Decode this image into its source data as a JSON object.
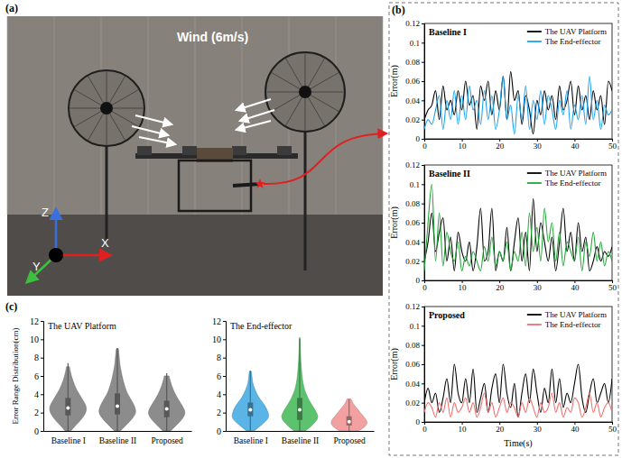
{
  "panel_labels": [
    "(a)",
    "(b)",
    "(c)"
  ],
  "photo": {
    "annotation": "Wind (6m/s)",
    "axes": {
      "x": "X",
      "y": "Y",
      "z": "Z"
    }
  },
  "chart_data": [
    {
      "type": "line",
      "title": "Baseline I",
      "ylabel": "Error(m)",
      "xlim": [
        0,
        50
      ],
      "xticks": [
        0,
        10,
        20,
        30,
        40,
        50
      ],
      "ylim": [
        0,
        0.12
      ],
      "yticks": [
        0,
        0.02,
        0.04,
        0.06,
        0.08,
        0.1,
        0.12
      ],
      "legend": "upper right",
      "x": [
        0,
        1,
        2,
        3,
        4,
        5,
        6,
        7,
        8,
        9,
        10,
        11,
        12,
        13,
        14,
        15,
        16,
        17,
        18,
        19,
        20,
        21,
        22,
        23,
        24,
        25,
        26,
        27,
        28,
        29,
        30,
        31,
        32,
        33,
        34,
        35,
        36,
        37,
        38,
        39,
        40,
        41,
        42,
        43,
        44,
        45,
        46,
        47,
        48,
        49,
        50
      ],
      "series": [
        {
          "name": "The UAV Platform",
          "color": "#000000",
          "values": [
            0.02,
            0.03,
            0.035,
            0.05,
            0.02,
            0.055,
            0.03,
            0.04,
            0.025,
            0.05,
            0.03,
            0.06,
            0.035,
            0.045,
            0.01,
            0.055,
            0.04,
            0.06,
            0.025,
            0.05,
            0.03,
            0.065,
            0.02,
            0.07,
            0.04,
            0.05,
            0.015,
            0.045,
            0.03,
            0.005,
            0.04,
            0.025,
            0.05,
            0.03,
            0.045,
            0.02,
            0.055,
            0.03,
            0.04,
            0.06,
            0.025,
            0.055,
            0.03,
            0.045,
            0.02,
            0.05,
            0.03,
            0.045,
            0.015,
            0.06,
            0.05
          ]
        },
        {
          "name": "The End-effector",
          "color": "#1ca3ec",
          "values": [
            0.01,
            0.02,
            0.015,
            0.03,
            0.045,
            0.01,
            0.04,
            0.02,
            0.05,
            0.015,
            0.045,
            0.02,
            0.055,
            0.03,
            0.04,
            0.015,
            0.05,
            0.02,
            0.045,
            0.01,
            0.03,
            0.065,
            0.02,
            0.035,
            0.005,
            0.045,
            0.02,
            0.055,
            0.01,
            0.04,
            0.02,
            0.05,
            0.015,
            0.045,
            0.03,
            0.01,
            0.04,
            0.025,
            0.05,
            0.01,
            0.035,
            0.02,
            0.045,
            0.015,
            0.065,
            0.02,
            0.04,
            0.01,
            0.035,
            0.025,
            0.03
          ]
        }
      ]
    },
    {
      "type": "line",
      "title": "Baseline II",
      "ylabel": "Error(m)",
      "xlim": [
        0,
        50
      ],
      "xticks": [
        0,
        10,
        20,
        30,
        40,
        50
      ],
      "ylim": [
        0,
        0.12
      ],
      "yticks": [
        0,
        0.02,
        0.04,
        0.06,
        0.08,
        0.1,
        0.12
      ],
      "legend": "upper right",
      "x": [
        0,
        1,
        2,
        3,
        4,
        5,
        6,
        7,
        8,
        9,
        10,
        11,
        12,
        13,
        14,
        15,
        16,
        17,
        18,
        19,
        20,
        21,
        22,
        23,
        24,
        25,
        26,
        27,
        28,
        29,
        30,
        31,
        32,
        33,
        34,
        35,
        36,
        37,
        38,
        39,
        40,
        41,
        42,
        43,
        44,
        45,
        46,
        47,
        48,
        49,
        50
      ],
      "series": [
        {
          "name": "The UAV Platform",
          "color": "#000000",
          "values": [
            0.02,
            0.04,
            0.07,
            0.03,
            0.05,
            0.065,
            0.02,
            0.045,
            0.01,
            0.05,
            0.03,
            0.02,
            0.04,
            0.01,
            0.035,
            0.075,
            0.02,
            0.03,
            0.075,
            0.01,
            0.03,
            0.02,
            0.055,
            0.01,
            0.04,
            0.065,
            0.02,
            0.05,
            0.01,
            0.085,
            0.03,
            0.06,
            0.04,
            0.02,
            0.045,
            0.01,
            0.04,
            0.075,
            0.03,
            0.05,
            0.02,
            0.06,
            0.03,
            0.045,
            0.01,
            0.02,
            0.035,
            0.02,
            0.03,
            0.025,
            0.035
          ]
        },
        {
          "name": "The End-effector",
          "color": "#22a538",
          "values": [
            0.01,
            0.06,
            0.1,
            0.02,
            0.07,
            0.015,
            0.05,
            0.03,
            0.02,
            0.04,
            0.01,
            0.025,
            0.015,
            0.03,
            0.02,
            0.01,
            0.035,
            0.02,
            0.045,
            0.015,
            0.03,
            0.02,
            0.04,
            0.01,
            0.03,
            0.02,
            0.05,
            0.015,
            0.07,
            0.03,
            0.055,
            0.02,
            0.075,
            0.04,
            0.06,
            0.02,
            0.05,
            0.015,
            0.04,
            0.03,
            0.02,
            0.045,
            0.01,
            0.04,
            0.025,
            0.05,
            0.02,
            0.04,
            0.015,
            0.03,
            0.02
          ]
        }
      ]
    },
    {
      "type": "line",
      "title": "Proposed",
      "ylabel": "Error(m)",
      "xlabel": "Time(s)",
      "xlim": [
        0,
        50
      ],
      "xticks": [
        0,
        10,
        20,
        30,
        40,
        50
      ],
      "ylim": [
        0,
        0.12
      ],
      "yticks": [
        0,
        0.02,
        0.04,
        0.06,
        0.08,
        0.1,
        0.12
      ],
      "legend": "upper right",
      "x": [
        0,
        1,
        2,
        3,
        4,
        5,
        6,
        7,
        8,
        9,
        10,
        11,
        12,
        13,
        14,
        15,
        16,
        17,
        18,
        19,
        20,
        21,
        22,
        23,
        24,
        25,
        26,
        27,
        28,
        29,
        30,
        31,
        32,
        33,
        34,
        35,
        36,
        37,
        38,
        39,
        40,
        41,
        42,
        43,
        44,
        45,
        46,
        47,
        48,
        49,
        50
      ],
      "series": [
        {
          "name": "The UAV Platform",
          "color": "#000000",
          "values": [
            0.02,
            0.035,
            0.02,
            0.03,
            0.01,
            0.025,
            0.045,
            0.02,
            0.06,
            0.03,
            0.02,
            0.045,
            0.02,
            0.055,
            0.01,
            0.025,
            0.04,
            0.01,
            0.035,
            0.05,
            0.02,
            0.06,
            0.03,
            0.015,
            0.04,
            0.005,
            0.03,
            0.05,
            0.02,
            0.055,
            0.03,
            0.01,
            0.035,
            0.02,
            0.055,
            0.02,
            0.045,
            0.015,
            0.03,
            0.02,
            0.04,
            0.06,
            0.025,
            0.01,
            0.03,
            0.045,
            0.02,
            0.03,
            0.04,
            0.02,
            0.045
          ]
        },
        {
          "name": "The End-effector",
          "color": "#f07070",
          "values": [
            0.01,
            0.02,
            0.015,
            0.005,
            0.02,
            0.01,
            0.025,
            0.005,
            0.02,
            0.01,
            0.015,
            0.025,
            0.01,
            0.02,
            0.005,
            0.015,
            0.03,
            0.01,
            0.02,
            0.005,
            0.015,
            0.025,
            0.01,
            0.02,
            0.015,
            0.005,
            0.02,
            0.01,
            0.025,
            0.015,
            0.005,
            0.02,
            0.01,
            0.015,
            0.03,
            0.01,
            0.02,
            0.005,
            0.015,
            0.01,
            0.025,
            0.02,
            0.005,
            0.015,
            0.03,
            0.01,
            0.02,
            0.005,
            0.015,
            0.02,
            0.01
          ]
        }
      ]
    },
    {
      "type": "violin",
      "title": "The UAV Platform",
      "ylabel": "Error Range Distribution(cm)",
      "categories": [
        "Baseline I",
        "Baseline II",
        "Proposed"
      ],
      "ylim": [
        0,
        12
      ],
      "yticks": [
        0,
        2,
        4,
        6,
        8,
        10,
        12
      ],
      "density_y": [
        0,
        0.5,
        1,
        1.5,
        2,
        2.5,
        3,
        3.5,
        4,
        4.5,
        5,
        5.5,
        6,
        6.5,
        7,
        7.5,
        8,
        8.5,
        9,
        9.5,
        10,
        10.5
      ],
      "violins": [
        {
          "color": "#8c8c8c",
          "min": 0,
          "q1": 1.7,
          "median": 2.5,
          "q3": 3.6,
          "max": 7.4,
          "density": [
            0.15,
            0.35,
            0.6,
            0.8,
            0.95,
            1.0,
            0.9,
            0.75,
            0.6,
            0.45,
            0.35,
            0.25,
            0.18,
            0.12,
            0.08,
            null,
            null,
            null,
            null,
            null,
            null,
            null
          ]
        },
        {
          "color": "#8c8c8c",
          "min": 0,
          "q1": 1.8,
          "median": 2.7,
          "q3": 4.1,
          "max": 9,
          "density": [
            0.15,
            0.4,
            0.65,
            0.85,
            1.0,
            0.95,
            0.85,
            0.7,
            0.55,
            0.45,
            0.38,
            0.3,
            0.25,
            0.2,
            0.15,
            0.12,
            0.1,
            0.08,
            0.05,
            null,
            null,
            null
          ]
        },
        {
          "color": "#8c8c8c",
          "min": 0,
          "q1": 1.5,
          "median": 2.4,
          "q3": 3.3,
          "max": 6.3,
          "density": [
            0.2,
            0.45,
            0.7,
            0.9,
            1.0,
            0.9,
            0.75,
            0.6,
            0.45,
            0.35,
            0.25,
            0.18,
            0.12,
            null,
            null,
            null,
            null,
            null,
            null,
            null,
            null,
            null
          ]
        }
      ]
    },
    {
      "type": "violin",
      "title": "The End-effector",
      "categories": [
        "Baseline I",
        "Baseline II",
        "Proposed"
      ],
      "ylim": [
        0,
        12
      ],
      "yticks": [
        0,
        2,
        4,
        6,
        8,
        10,
        12
      ],
      "density_y": [
        0,
        0.5,
        1,
        1.5,
        2,
        2.5,
        3,
        3.5,
        4,
        4.5,
        5,
        5.5,
        6,
        6.5,
        7,
        7.5,
        8,
        8.5,
        9,
        9.5,
        10,
        10.5
      ],
      "violins": [
        {
          "color": "#5ab4e5",
          "min": 0,
          "q1": 1.6,
          "median": 2.3,
          "q3": 3.1,
          "max": 6.6,
          "density": [
            0.2,
            0.5,
            0.8,
            1.0,
            0.95,
            0.85,
            0.7,
            0.5,
            0.35,
            0.25,
            0.15,
            0.1,
            0.08,
            0.05,
            null,
            null,
            null,
            null,
            null,
            null,
            null,
            null
          ]
        },
        {
          "color": "#5cc26e",
          "min": 0,
          "q1": 1.2,
          "median": 2.3,
          "q3": 3.6,
          "max": 10.2,
          "density": [
            0.3,
            0.6,
            0.85,
            1.0,
            0.9,
            0.75,
            0.6,
            0.45,
            0.35,
            0.25,
            0.2,
            0.15,
            0.12,
            0.1,
            0.08,
            0.06,
            0.05,
            0.04,
            0.03,
            0.03,
            0.02,
            null
          ]
        },
        {
          "color": "#f2a0a0",
          "min": 0,
          "q1": 0.6,
          "median": 1.0,
          "q3": 1.6,
          "max": 3.5,
          "density": [
            0.5,
            0.9,
            1.0,
            0.8,
            0.6,
            0.4,
            0.2,
            0.1,
            null,
            null,
            null,
            null,
            null,
            null,
            null,
            null,
            null,
            null,
            null,
            null,
            null,
            null
          ]
        }
      ]
    }
  ]
}
